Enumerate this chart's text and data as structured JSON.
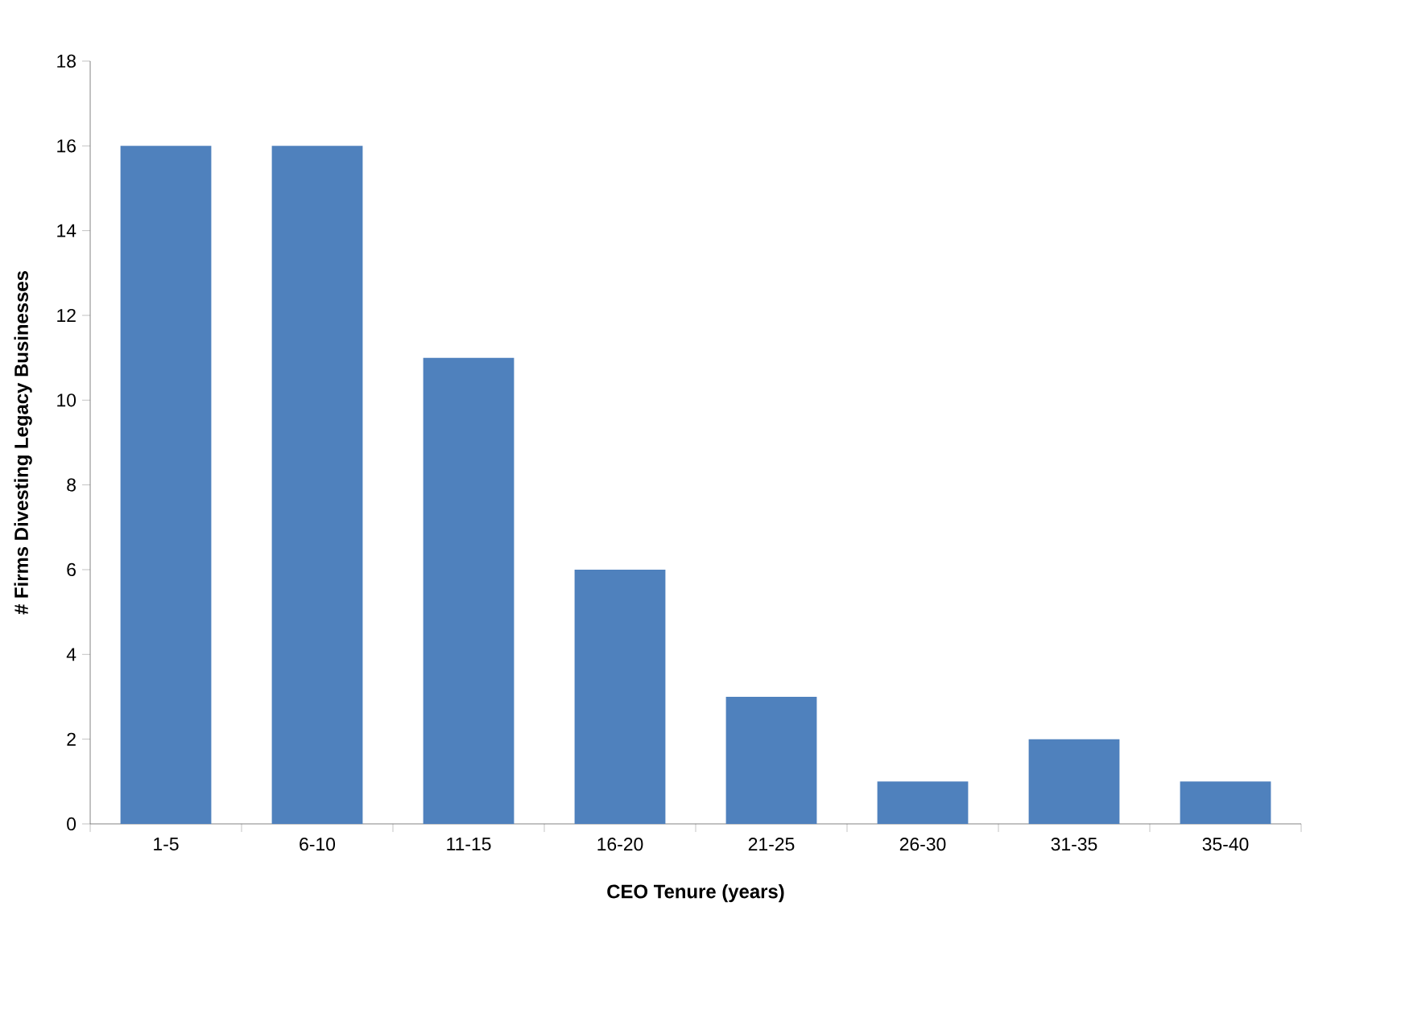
{
  "chart_data": {
    "type": "bar",
    "xlabel": "CEO Tenure (years)",
    "ylabel": "# Firms Divesting Legacy Businesses",
    "categories": [
      "1-5",
      "6-10",
      "11-15",
      "16-20",
      "21-25",
      "26-30",
      "31-35",
      "35-40"
    ],
    "values": [
      16,
      16,
      11,
      6,
      3,
      1,
      2,
      1
    ],
    "color": "#4f81bd",
    "ylim": [
      0,
      18
    ],
    "yticks": [
      0,
      2,
      4,
      6,
      8,
      10,
      12,
      14,
      16,
      18
    ]
  }
}
